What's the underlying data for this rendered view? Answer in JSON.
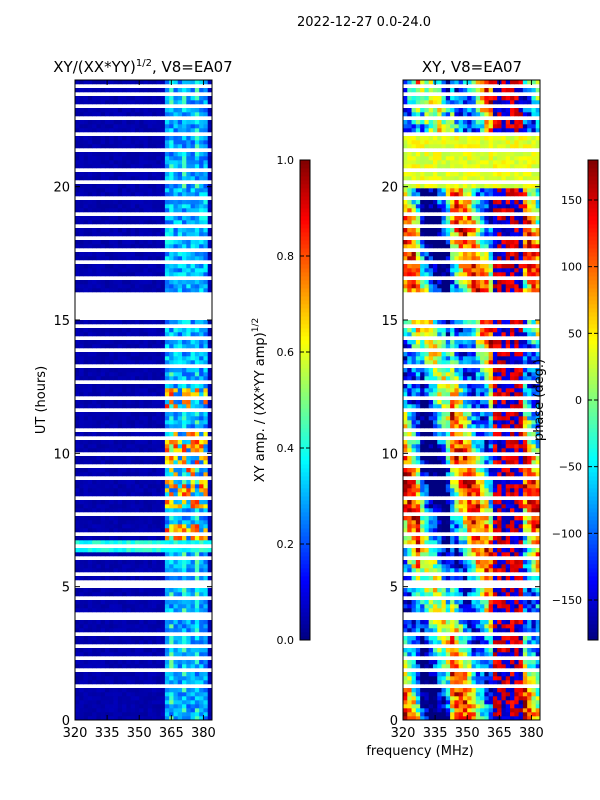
{
  "figure": {
    "suptitle": "2022-12-27 0.0-24.0",
    "shared_xlabel": "frequency (MHz)"
  },
  "chart_data": [
    {
      "type": "heatmap",
      "title": "XY/(XX*YY)",
      "title_sup": "1/2",
      "title_suffix": ", V8=EA07",
      "ylabel": "UT (hours)",
      "xlim": [
        320,
        384
      ],
      "ylim": [
        0,
        24
      ],
      "xticks": [
        320,
        335,
        350,
        365,
        380
      ],
      "yticks": [
        0,
        5,
        10,
        15,
        20
      ],
      "colormap": "jet",
      "colorbar": {
        "label": "XY amp. / (XX*YY amp)",
        "label_sup": "1/2",
        "range": [
          0.0,
          1.0
        ],
        "ticks": [
          "0.0",
          "0.2",
          "0.4",
          "0.6",
          "0.8",
          "1.0"
        ],
        "tick_values": [
          0.0,
          0.2,
          0.4,
          0.6,
          0.8,
          1.0
        ]
      }
    },
    {
      "type": "heatmap",
      "title": "XY, V8=EA07",
      "ylabel": "",
      "xlim": [
        320,
        384
      ],
      "ylim": [
        0,
        24
      ],
      "xticks": [
        320,
        335,
        350,
        365,
        380
      ],
      "yticks": [
        0,
        5,
        10,
        15,
        20
      ],
      "colormap": "jet",
      "colorbar": {
        "label": "phase (deg.)",
        "range": [
          -180,
          180
        ],
        "ticks": [
          "150",
          "100",
          "50",
          "0",
          "−50",
          "−100",
          "−150"
        ],
        "tick_values": [
          150,
          100,
          50,
          0,
          -50,
          -100,
          -150
        ]
      }
    }
  ],
  "colors": {
    "jet_low": "#00007f",
    "jet_high": "#7f0000",
    "gap": "#ffffff"
  }
}
